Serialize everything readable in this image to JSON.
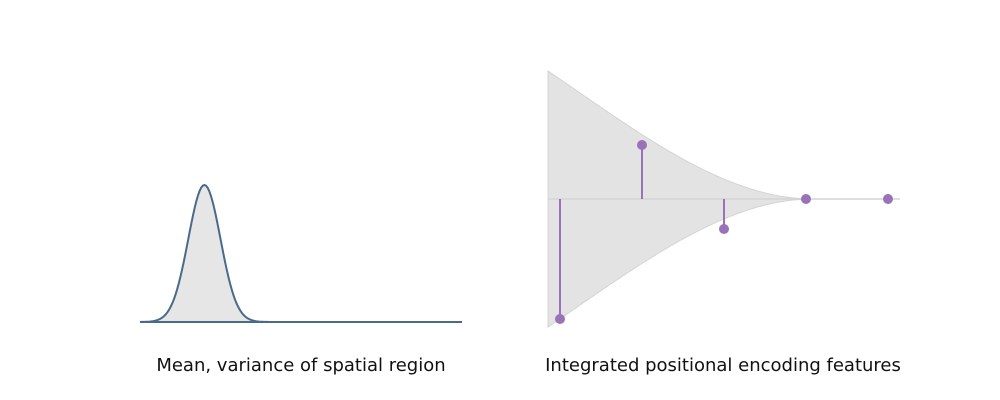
{
  "panels": {
    "left": {
      "caption": "Mean, variance of spatial region",
      "gaussian": {
        "mean": 0.2,
        "sigma": 0.05,
        "peak": 1.0,
        "x_range": [
          0,
          1
        ]
      },
      "colors": {
        "curve": "#4a6a8a",
        "fill": "#e6e6e6"
      }
    },
    "right": {
      "caption": "Integrated positional encoding features",
      "envelope_note_free": true,
      "envelope": {
        "width_at_start": 1.0,
        "decay_end": 0.75
      },
      "features": [
        {
          "index": 0,
          "value": -1.0
        },
        {
          "index": 1,
          "value": 0.45
        },
        {
          "index": 2,
          "value": -0.25
        },
        {
          "index": 3,
          "value": 0.0
        },
        {
          "index": 4,
          "value": 0.0
        }
      ],
      "colors": {
        "stem": "#9a72b8",
        "dot": "#9a72b8",
        "fill": "#e3e3e3",
        "edge": "#d4d4d4"
      }
    }
  }
}
